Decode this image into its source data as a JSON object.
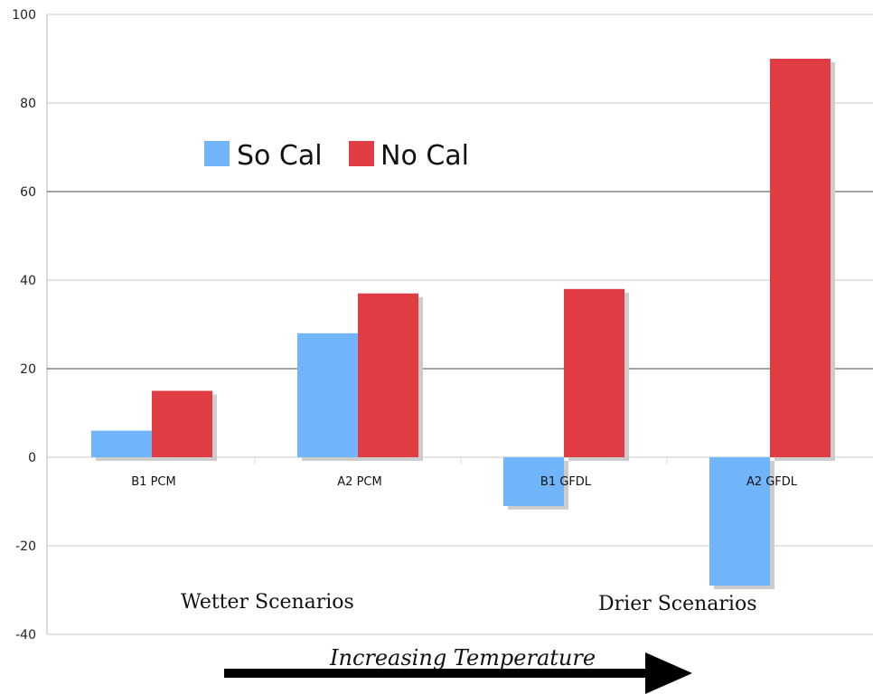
{
  "chart_data": {
    "type": "bar",
    "categories": [
      "B1 PCM",
      "A2 PCM",
      "B1 GFDL",
      "A2 GFDL"
    ],
    "series": [
      {
        "name": "So Cal",
        "color": "#70b4fa",
        "values": [
          6,
          28,
          -11,
          -29
        ]
      },
      {
        "name": "No Cal",
        "color": "#e03c44",
        "values": [
          15,
          37,
          38,
          90
        ]
      }
    ],
    "ylim": [
      -40,
      100
    ],
    "yticks": [
      -40,
      -20,
      0,
      20,
      40,
      60,
      80,
      100
    ],
    "grid": "horizontal major gridlines",
    "legend_position": "upper-left",
    "annotations": {
      "left": "Wetter Scenarios",
      "right": "Drier Scenarios",
      "arrow_label": "Increasing Temperature"
    }
  }
}
